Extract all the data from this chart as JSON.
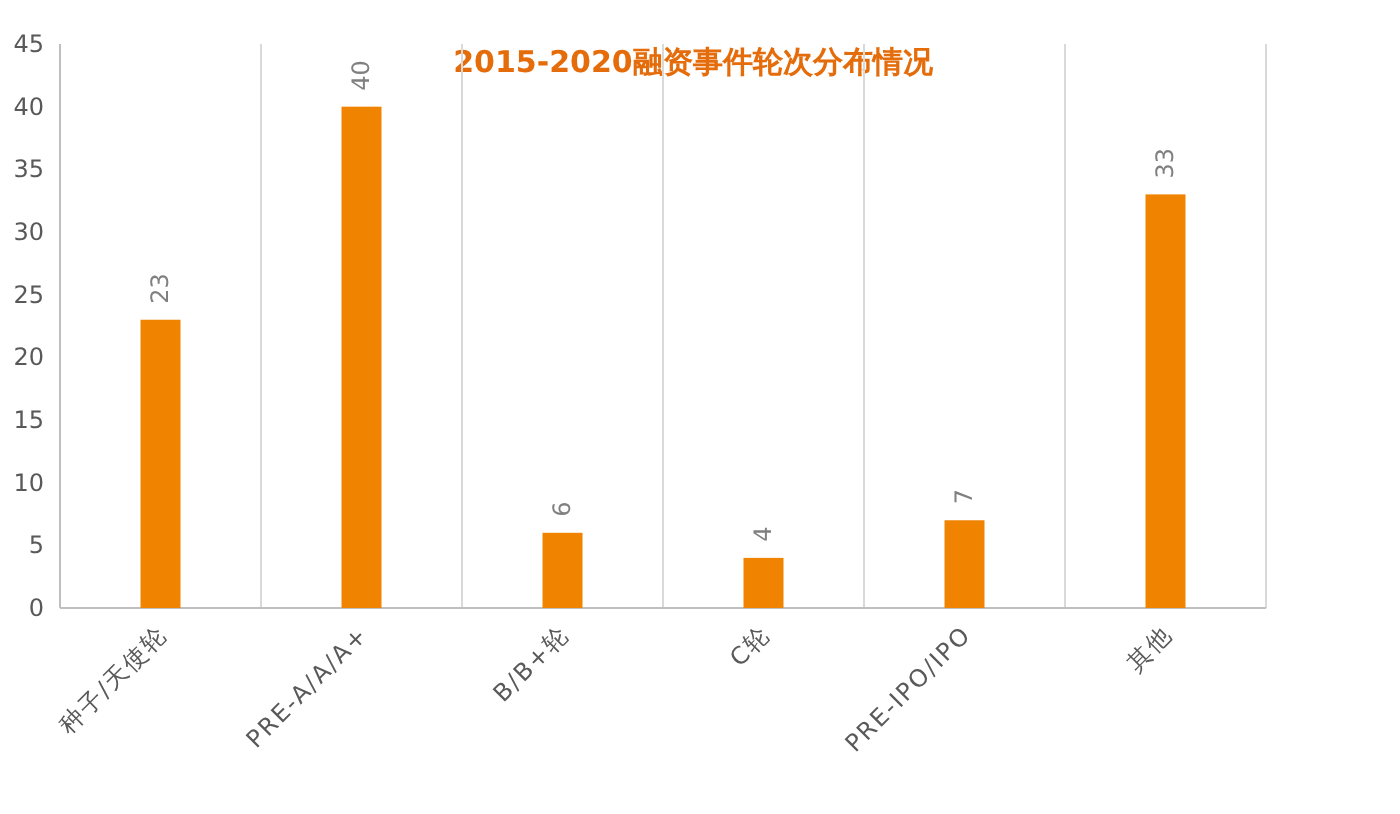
{
  "chart_data": {
    "type": "bar",
    "title": "2015-2020融资事件轮次分布情况",
    "categories": [
      "种子/天使轮",
      "PRE-A/A/A+",
      "B/B+轮",
      "C轮",
      "PRE-IPO/IPO",
      "其他"
    ],
    "values": [
      23,
      40,
      6,
      4,
      7,
      33
    ],
    "color": "#f08300",
    "ylim": [
      0,
      45
    ],
    "yticks": [
      0,
      5,
      10,
      15,
      20,
      25,
      30,
      35,
      40,
      45
    ],
    "grid": "x",
    "data_labels": true
  }
}
